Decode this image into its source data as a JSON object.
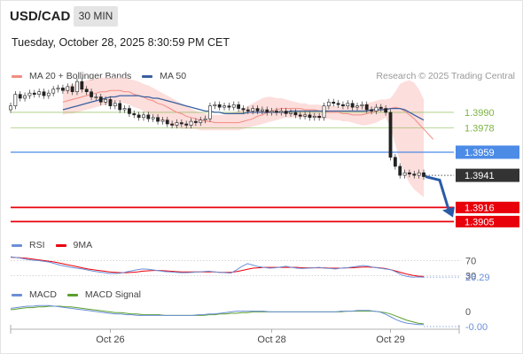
{
  "header": {
    "symbol": "USD/CAD",
    "timeframe": "30 MIN",
    "datetime": "Tuesday, October 28, 2025 8:30:59 PM CET",
    "credit": "Research © 2025 Trading Central"
  },
  "colors": {
    "bb": "#f28b82",
    "ma50": "#3a5f9f",
    "level_green": "#7cb342",
    "level_blue": "#4c8be6",
    "level_red": "#e8000b",
    "arrow": "#2a5ba8",
    "rsi": "#6b8fd8",
    "rsi_ma": "#e8000b",
    "macd": "#6b8fd8",
    "macd_signal": "#5aa02c"
  },
  "chart_data": [
    {
      "type": "candlestick",
      "legend": [
        {
          "label": "MA 20 + Bollinger Bands",
          "color": "#f28b82"
        },
        {
          "label": "MA 50",
          "color": "#3a5f9f"
        }
      ],
      "ylim": [
        1.3897,
        1.4012
      ],
      "x_labels": [
        {
          "label": "Oct 26",
          "index": 21
        },
        {
          "label": "Oct 28",
          "index": 55
        },
        {
          "label": "Oct 29",
          "index": 80
        }
      ],
      "levels": [
        {
          "value": 1.399,
          "label": "1.3990",
          "kind": "resistance"
        },
        {
          "value": 1.3978,
          "label": "1.3978",
          "kind": "resistance"
        },
        {
          "value": 1.3959,
          "label": "1.3959",
          "kind": "pivot"
        },
        {
          "value": 1.3941,
          "label": "1.3941",
          "kind": "last"
        },
        {
          "value": 1.3916,
          "label": "1.3916",
          "kind": "target"
        },
        {
          "value": 1.3905,
          "label": "1.3905",
          "kind": "target"
        }
      ],
      "close": [
        1.3995,
        1.4004,
        1.4001,
        1.4003,
        1.4005,
        1.4004,
        1.4006,
        1.4003,
        1.4005,
        1.4008,
        1.4009,
        1.4007,
        1.401,
        1.4006,
        1.4014,
        1.4008,
        1.4006,
        1.4002,
        1.4002,
        1.3998,
        1.4,
        1.3995,
        1.3997,
        1.3992,
        1.3993,
        1.3989,
        1.3988,
        1.3986,
        1.3988,
        1.3985,
        1.3986,
        1.3983,
        1.3984,
        1.3981,
        1.398,
        1.3982,
        1.3981,
        1.398,
        1.3983,
        1.3982,
        1.3984,
        1.3985,
        1.3995,
        1.3996,
        1.3994,
        1.3995,
        1.3994,
        1.3996,
        1.3993,
        1.3992,
        1.3991,
        1.3993,
        1.3991,
        1.3992,
        1.399,
        1.3991,
        1.399,
        1.3991,
        1.3989,
        1.399,
        1.3988,
        1.3987,
        1.3988,
        1.3986,
        1.3987,
        1.3986,
        1.3995,
        1.3998,
        1.3997,
        1.3996,
        1.3995,
        1.3997,
        1.3994,
        1.3995,
        1.3996,
        1.3992,
        1.3991,
        1.3994,
        1.3993,
        1.399,
        1.3955,
        1.3948,
        1.3941,
        1.3943,
        1.3942,
        1.3941,
        1.3943,
        1.394
      ],
      "ma20": [
        1.3998,
        1.3999,
        1.4,
        1.4001,
        1.4002,
        1.4003,
        1.4004,
        1.4005,
        1.4006,
        1.4006,
        1.4007,
        1.4007,
        1.4007,
        1.4006,
        1.4006,
        1.4004,
        1.4003,
        1.4002,
        1.4,
        1.3999,
        1.3997,
        1.3996,
        1.3994,
        1.3992,
        1.399,
        1.3989,
        1.3987,
        1.3986,
        1.3985,
        1.3984,
        1.3983,
        1.3983,
        1.3982,
        1.3982,
        1.3982,
        1.3982,
        1.3982,
        1.3982,
        1.3983,
        1.3984,
        1.3985,
        1.3987,
        1.3988,
        1.399,
        1.3991,
        1.3992,
        1.3993,
        1.3993,
        1.3993,
        1.3993,
        1.3993,
        1.3992,
        1.3992,
        1.3992,
        1.3991,
        1.3991,
        1.399,
        1.399,
        1.399,
        1.3989,
        1.3989,
        1.3988,
        1.3988,
        1.3988,
        1.3989,
        1.399,
        1.3991,
        1.3992,
        1.3993,
        1.3993,
        1.3994,
        1.3993,
        1.3991,
        1.3988,
        1.3985,
        1.3981,
        1.3977,
        1.3973,
        1.3969
      ],
      "bb_upper": [
        1.4008,
        1.401,
        1.4012,
        1.4013,
        1.4014,
        1.4015,
        1.4016,
        1.4016,
        1.4017,
        1.4017,
        1.4017,
        1.4017,
        1.4017,
        1.4017,
        1.4016,
        1.4015,
        1.4014,
        1.4012,
        1.4011,
        1.4009,
        1.4007,
        1.4005,
        1.4003,
        1.4001,
        1.3999,
        1.3997,
        1.3995,
        1.3993,
        1.3991,
        1.399,
        1.3989,
        1.3988,
        1.3988,
        1.3988,
        1.3988,
        1.3989,
        1.399,
        1.3991,
        1.3993,
        1.3995,
        1.3997,
        1.3999,
        1.4001,
        1.4002,
        1.4002,
        1.4001,
        1.4001,
        1.4,
        1.3999,
        1.3998,
        1.3997,
        1.3997,
        1.3996,
        1.3996,
        1.3996,
        1.3995,
        1.3995,
        1.3995,
        1.3995,
        1.3995,
        1.3995,
        1.3995,
        1.3995,
        1.3996,
        1.3997,
        1.3998,
        1.3999,
        1.4,
        1.4,
        1.4001,
        1.4006,
        1.4012,
        1.4014,
        1.4015,
        1.4013,
        1.4008,
        1.4
      ],
      "bb_lower": [
        1.3988,
        1.3989,
        1.3989,
        1.399,
        1.3991,
        1.3992,
        1.3993,
        1.3994,
        1.3995,
        1.3996,
        1.3997,
        1.3998,
        1.3998,
        1.3997,
        1.3996,
        1.3994,
        1.3993,
        1.3991,
        1.3989,
        1.3987,
        1.3985,
        1.3983,
        1.3981,
        1.3979,
        1.3978,
        1.3977,
        1.3977,
        1.3977,
        1.3977,
        1.3976,
        1.3976,
        1.3976,
        1.3976,
        1.3976,
        1.3976,
        1.3976,
        1.3976,
        1.3976,
        1.3977,
        1.3978,
        1.3979,
        1.398,
        1.3981,
        1.3982,
        1.3983,
        1.3984,
        1.3985,
        1.3986,
        1.3986,
        1.3986,
        1.3986,
        1.3986,
        1.3986,
        1.3986,
        1.3985,
        1.3985,
        1.3985,
        1.3984,
        1.3984,
        1.3983,
        1.3983,
        1.3982,
        1.3981,
        1.398,
        1.398,
        1.3981,
        1.3982,
        1.3984,
        1.3986,
        1.3978,
        1.3965,
        1.3952,
        1.3942,
        1.3935,
        1.393,
        1.3927,
        1.3924
      ],
      "ma50": [
        1.3992,
        1.3993,
        1.3994,
        1.3995,
        1.3996,
        1.3997,
        1.3998,
        1.3999,
        1.4,
        1.4001,
        1.4002,
        1.4002,
        1.4003,
        1.4003,
        1.4003,
        1.4003,
        1.4003,
        1.4002,
        1.4002,
        1.4001,
        1.4001,
        1.4,
        1.3999,
        1.3998,
        1.3997,
        1.3996,
        1.3995,
        1.3994,
        1.3993,
        1.3992,
        1.3991,
        1.3991,
        1.399,
        1.399,
        1.3989,
        1.3989,
        1.3989,
        1.3989,
        1.3989,
        1.399,
        1.399,
        1.399,
        1.399,
        1.399,
        1.399,
        1.399,
        1.399,
        1.399,
        1.3991,
        1.3991,
        1.3991,
        1.3991,
        1.3991,
        1.3991,
        1.3991,
        1.3991,
        1.3991,
        1.3991,
        1.3991,
        1.3991,
        1.3991,
        1.3991,
        1.3991,
        1.3991,
        1.3991,
        1.3992,
        1.3992,
        1.3992,
        1.3992,
        1.3993,
        1.3993,
        1.3993,
        1.3992,
        1.399,
        1.3988,
        1.3986,
        1.3984
      ]
    },
    {
      "type": "line",
      "legend": [
        {
          "label": "RSI",
          "color": "#6b8fd8"
        },
        {
          "label": "9MA",
          "color": "#e8000b"
        }
      ],
      "ylim": [
        15,
        85
      ],
      "y_ticks": [
        {
          "label": "70",
          "value": 70
        },
        {
          "label": "30",
          "value": 30
        }
      ],
      "last_label": "26.29",
      "rsi": [
        80,
        78,
        76,
        73,
        71,
        70,
        68,
        66,
        62,
        58,
        55,
        52,
        50,
        48,
        45,
        42,
        40,
        38,
        36,
        36,
        37,
        40,
        43,
        46,
        48,
        47,
        45,
        43,
        41,
        40,
        39,
        38,
        38,
        39,
        40,
        41,
        42,
        40,
        39,
        38,
        37,
        45,
        55,
        62,
        58,
        54,
        52,
        50,
        51,
        53,
        55,
        52,
        50,
        49,
        50,
        51,
        52,
        50,
        49,
        48,
        50,
        51,
        53,
        55,
        57,
        55,
        52,
        50,
        48,
        46,
        40,
        32,
        28,
        26,
        27,
        26.3
      ],
      "ma": [
        79,
        78,
        77,
        76,
        74,
        72,
        70,
        68,
        66,
        63,
        60,
        57,
        54,
        51,
        48,
        46,
        44,
        42,
        40,
        39,
        38,
        38,
        39,
        40,
        42,
        43,
        44,
        44,
        43,
        42,
        41,
        40,
        40,
        40,
        40,
        40,
        40,
        40,
        39,
        39,
        39,
        41,
        44,
        47,
        50,
        51,
        52,
        52,
        52,
        52,
        52,
        52,
        52,
        51,
        51,
        51,
        51,
        51,
        50,
        50,
        50,
        51,
        51,
        52,
        53,
        53,
        52,
        51,
        49,
        46,
        42,
        38,
        34,
        31,
        29,
        28
      ]
    },
    {
      "type": "line",
      "legend": [
        {
          "label": "MACD",
          "color": "#6b8fd8"
        },
        {
          "label": "MACD Signal",
          "color": "#5aa02c"
        }
      ],
      "ylim": [
        -0.002,
        0.0015
      ],
      "y_ticks": [
        {
          "label": "0",
          "value": 0
        }
      ],
      "last_label": "-0.00",
      "macd": [
        0.0007,
        0.0008,
        0.0009,
        0.001,
        0.001,
        0.0011,
        0.0011,
        0.0011,
        0.001,
        0.0009,
        0.0008,
        0.0007,
        0.0006,
        0.0005,
        0.0004,
        0.0003,
        0.0002,
        0.0001,
        0.0,
        -0.0001,
        -0.0001,
        -0.0002,
        -0.0002,
        -0.0003,
        -0.0003,
        -0.0003,
        -0.0003,
        -0.0003,
        -0.0003,
        -0.0003,
        -0.0003,
        -0.0003,
        -0.0003,
        -0.0003,
        -0.0002,
        -0.0002,
        -0.0001,
        -0.0001,
        0.0,
        0.0001,
        0.0002,
        0.0003,
        0.0003,
        0.0003,
        0.0003,
        0.0003,
        0.0003,
        0.0002,
        0.0002,
        0.0002,
        0.0002,
        0.0002,
        0.0002,
        0.0002,
        0.0002,
        0.0002,
        0.0002,
        0.0002,
        0.0002,
        0.0002,
        0.0003,
        0.0003,
        0.0003,
        0.0004,
        0.0004,
        0.0004,
        0.0003,
        0.0002,
        -0.0001,
        -0.0005,
        -0.0009,
        -0.0012,
        -0.0014,
        -0.0015,
        -0.0016,
        -0.0016
      ],
      "signal": [
        0.0005,
        0.0006,
        0.0007,
        0.0008,
        0.0008,
        0.0009,
        0.0009,
        0.001,
        0.001,
        0.001,
        0.0009,
        0.0009,
        0.0008,
        0.0007,
        0.0006,
        0.0005,
        0.0004,
        0.0003,
        0.0002,
        0.0001,
        0.0001,
        0.0,
        -0.0001,
        -0.0001,
        -0.0002,
        -0.0002,
        -0.0002,
        -0.0002,
        -0.0003,
        -0.0003,
        -0.0003,
        -0.0003,
        -0.0003,
        -0.0003,
        -0.0003,
        -0.0003,
        -0.0002,
        -0.0002,
        -0.0001,
        -0.0001,
        0.0,
        0.0,
        0.0001,
        0.0001,
        0.0002,
        0.0002,
        0.0002,
        0.0002,
        0.0002,
        0.0002,
        0.0002,
        0.0002,
        0.0002,
        0.0002,
        0.0002,
        0.0002,
        0.0002,
        0.0002,
        0.0002,
        0.0002,
        0.0002,
        0.0003,
        0.0003,
        0.0003,
        0.0003,
        0.0003,
        0.0003,
        0.0002,
        0.0001,
        -0.0001,
        -0.0004,
        -0.0007,
        -0.001,
        -0.0012,
        -0.0014,
        -0.0015
      ]
    }
  ]
}
